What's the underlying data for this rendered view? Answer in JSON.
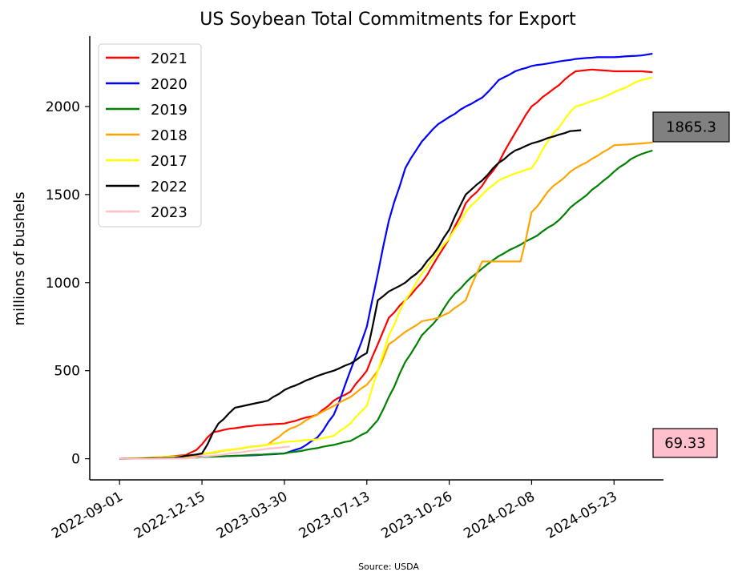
{
  "chart_data": {
    "type": "line",
    "title": "US Soybean Total Commitments for Export",
    "ylabel": "millions of bushels",
    "xlabel": "",
    "source": "Source: USDA",
    "x_tick_labels": [
      "2022-09-01",
      "2022-12-15",
      "2023-03-30",
      "2023-07-13",
      "2023-10-26",
      "2024-02-08",
      "2024-05-23"
    ],
    "x_tick_dates": [
      "2022-09-01",
      "2022-12-15",
      "2023-03-30",
      "2023-07-13",
      "2023-10-26",
      "2024-02-08",
      "2024-05-23"
    ],
    "xlim": [
      "2022-07-25",
      "2024-07-25"
    ],
    "yticks": [
      0,
      500,
      1000,
      1500,
      2000
    ],
    "ylim": [
      -120,
      2400
    ],
    "legend_position": "upper left",
    "grid": false,
    "series": [
      {
        "name": "2021",
        "color": "#ff0000",
        "points": [
          [
            "2022-09-01",
            0
          ],
          [
            "2022-10-13",
            5
          ],
          [
            "2022-11-24",
            20
          ],
          [
            "2022-12-08",
            50
          ],
          [
            "2022-12-29",
            150
          ],
          [
            "2023-01-19",
            170
          ],
          [
            "2023-02-23",
            190
          ],
          [
            "2023-03-30",
            200
          ],
          [
            "2023-05-11",
            250
          ],
          [
            "2023-06-01",
            330
          ],
          [
            "2023-06-22",
            380
          ],
          [
            "2023-07-13",
            500
          ],
          [
            "2023-07-27",
            650
          ],
          [
            "2023-08-10",
            800
          ],
          [
            "2023-08-31",
            900
          ],
          [
            "2023-09-21",
            1000
          ],
          [
            "2023-10-12",
            1150
          ],
          [
            "2023-10-26",
            1250
          ],
          [
            "2023-11-16",
            1450
          ],
          [
            "2023-12-07",
            1550
          ],
          [
            "2023-12-28",
            1680
          ],
          [
            "2024-01-18",
            1850
          ],
          [
            "2024-02-08",
            2000
          ],
          [
            "2024-03-07",
            2100
          ],
          [
            "2024-04-04",
            2200
          ],
          [
            "2024-04-25",
            2210
          ],
          [
            "2024-05-23",
            2200
          ],
          [
            "2024-06-27",
            2200
          ],
          [
            "2024-07-11",
            2195
          ]
        ]
      },
      {
        "name": "2020",
        "color": "#0000ff",
        "points": [
          [
            "2022-09-01",
            0
          ],
          [
            "2022-11-24",
            10
          ],
          [
            "2023-01-19",
            15
          ],
          [
            "2023-02-23",
            20
          ],
          [
            "2023-03-30",
            30
          ],
          [
            "2023-04-20",
            60
          ],
          [
            "2023-05-11",
            120
          ],
          [
            "2023-06-01",
            250
          ],
          [
            "2023-06-22",
            500
          ],
          [
            "2023-07-13",
            750
          ],
          [
            "2023-07-27",
            1050
          ],
          [
            "2023-08-10",
            1350
          ],
          [
            "2023-08-31",
            1650
          ],
          [
            "2023-09-21",
            1800
          ],
          [
            "2023-10-12",
            1900
          ],
          [
            "2023-10-26",
            1940
          ],
          [
            "2023-11-16",
            2000
          ],
          [
            "2023-12-07",
            2050
          ],
          [
            "2023-12-28",
            2150
          ],
          [
            "2024-01-18",
            2200
          ],
          [
            "2024-02-08",
            2230
          ],
          [
            "2024-03-07",
            2250
          ],
          [
            "2024-04-04",
            2270
          ],
          [
            "2024-05-02",
            2280
          ],
          [
            "2024-05-23",
            2280
          ],
          [
            "2024-06-27",
            2290
          ],
          [
            "2024-07-11",
            2300
          ]
        ]
      },
      {
        "name": "2019",
        "color": "#008000",
        "points": [
          [
            "2022-09-01",
            0
          ],
          [
            "2022-11-24",
            5
          ],
          [
            "2023-01-19",
            15
          ],
          [
            "2023-03-30",
            30
          ],
          [
            "2023-05-11",
            60
          ],
          [
            "2023-06-22",
            100
          ],
          [
            "2023-07-13",
            150
          ],
          [
            "2023-07-27",
            220
          ],
          [
            "2023-08-10",
            350
          ],
          [
            "2023-08-31",
            550
          ],
          [
            "2023-09-21",
            700
          ],
          [
            "2023-10-12",
            800
          ],
          [
            "2023-10-26",
            900
          ],
          [
            "2023-11-16",
            1000
          ],
          [
            "2023-12-07",
            1080
          ],
          [
            "2023-12-28",
            1150
          ],
          [
            "2024-01-18",
            1200
          ],
          [
            "2024-02-08",
            1250
          ],
          [
            "2024-03-07",
            1330
          ],
          [
            "2024-04-04",
            1450
          ],
          [
            "2024-05-02",
            1550
          ],
          [
            "2024-05-23",
            1630
          ],
          [
            "2024-06-13",
            1700
          ],
          [
            "2024-06-27",
            1730
          ],
          [
            "2024-07-11",
            1750
          ]
        ]
      },
      {
        "name": "2018",
        "color": "#ffa500",
        "points": [
          [
            "2022-09-01",
            0
          ],
          [
            "2022-11-24",
            10
          ],
          [
            "2023-01-19",
            50
          ],
          [
            "2023-03-09",
            80
          ],
          [
            "2023-03-30",
            150
          ],
          [
            "2023-05-11",
            250
          ],
          [
            "2023-06-01",
            300
          ],
          [
            "2023-06-22",
            350
          ],
          [
            "2023-07-13",
            420
          ],
          [
            "2023-07-27",
            500
          ],
          [
            "2023-08-10",
            650
          ],
          [
            "2023-08-31",
            720
          ],
          [
            "2023-09-21",
            780
          ],
          [
            "2023-10-12",
            800
          ],
          [
            "2023-10-26",
            830
          ],
          [
            "2023-11-16",
            900
          ],
          [
            "2023-12-07",
            1120
          ],
          [
            "2023-12-28",
            1120
          ],
          [
            "2024-01-25",
            1120
          ],
          [
            "2024-02-08",
            1400
          ],
          [
            "2024-03-07",
            1550
          ],
          [
            "2024-04-04",
            1650
          ],
          [
            "2024-05-02",
            1720
          ],
          [
            "2024-05-23",
            1780
          ],
          [
            "2024-06-27",
            1790
          ],
          [
            "2024-07-11",
            1795
          ]
        ]
      },
      {
        "name": "2017",
        "color": "#ffff00",
        "points": [
          [
            "2022-09-01",
            0
          ],
          [
            "2022-11-24",
            15
          ],
          [
            "2023-01-19",
            50
          ],
          [
            "2023-03-09",
            80
          ],
          [
            "2023-03-30",
            95
          ],
          [
            "2023-05-11",
            110
          ],
          [
            "2023-06-01",
            130
          ],
          [
            "2023-06-22",
            200
          ],
          [
            "2023-07-13",
            300
          ],
          [
            "2023-07-27",
            500
          ],
          [
            "2023-08-10",
            700
          ],
          [
            "2023-08-31",
            900
          ],
          [
            "2023-09-21",
            1050
          ],
          [
            "2023-10-12",
            1180
          ],
          [
            "2023-10-26",
            1250
          ],
          [
            "2023-11-16",
            1400
          ],
          [
            "2023-12-07",
            1500
          ],
          [
            "2023-12-28",
            1580
          ],
          [
            "2024-01-18",
            1620
          ],
          [
            "2024-02-08",
            1650
          ],
          [
            "2024-03-07",
            1850
          ],
          [
            "2024-04-04",
            2000
          ],
          [
            "2024-05-02",
            2040
          ],
          [
            "2024-05-23",
            2080
          ],
          [
            "2024-06-27",
            2150
          ],
          [
            "2024-07-11",
            2165
          ]
        ]
      },
      {
        "name": "2022",
        "color": "#000000",
        "points": [
          [
            "2022-09-01",
            0
          ],
          [
            "2022-11-10",
            5
          ],
          [
            "2022-12-15",
            30
          ],
          [
            "2023-01-05",
            200
          ],
          [
            "2023-01-26",
            290
          ],
          [
            "2023-02-16",
            310
          ],
          [
            "2023-03-09",
            330
          ],
          [
            "2023-03-30",
            390
          ],
          [
            "2023-04-20",
            430
          ],
          [
            "2023-05-11",
            470
          ],
          [
            "2023-06-01",
            500
          ],
          [
            "2023-06-22",
            540
          ],
          [
            "2023-07-13",
            600
          ],
          [
            "2023-07-27",
            900
          ],
          [
            "2023-08-10",
            950
          ],
          [
            "2023-08-31",
            1000
          ],
          [
            "2023-09-21",
            1080
          ],
          [
            "2023-10-12",
            1200
          ],
          [
            "2023-10-26",
            1300
          ],
          [
            "2023-11-16",
            1500
          ],
          [
            "2023-12-07",
            1580
          ],
          [
            "2023-12-28",
            1680
          ],
          [
            "2024-01-18",
            1750
          ],
          [
            "2024-02-08",
            1790
          ],
          [
            "2024-03-07",
            1830
          ],
          [
            "2024-03-28",
            1860
          ],
          [
            "2024-04-11",
            1865.3
          ]
        ]
      },
      {
        "name": "2023",
        "color": "#ffc0cb",
        "points": [
          [
            "2022-09-01",
            0
          ],
          [
            "2022-10-13",
            0
          ],
          [
            "2022-11-24",
            2
          ],
          [
            "2023-01-05",
            20
          ],
          [
            "2023-02-16",
            45
          ],
          [
            "2023-03-16",
            60
          ],
          [
            "2023-04-06",
            69.33
          ]
        ]
      }
    ],
    "annotations": [
      {
        "text": "1865.3",
        "color": "#808080"
      },
      {
        "text": "69.33",
        "color": "#ffc0cb"
      }
    ]
  }
}
